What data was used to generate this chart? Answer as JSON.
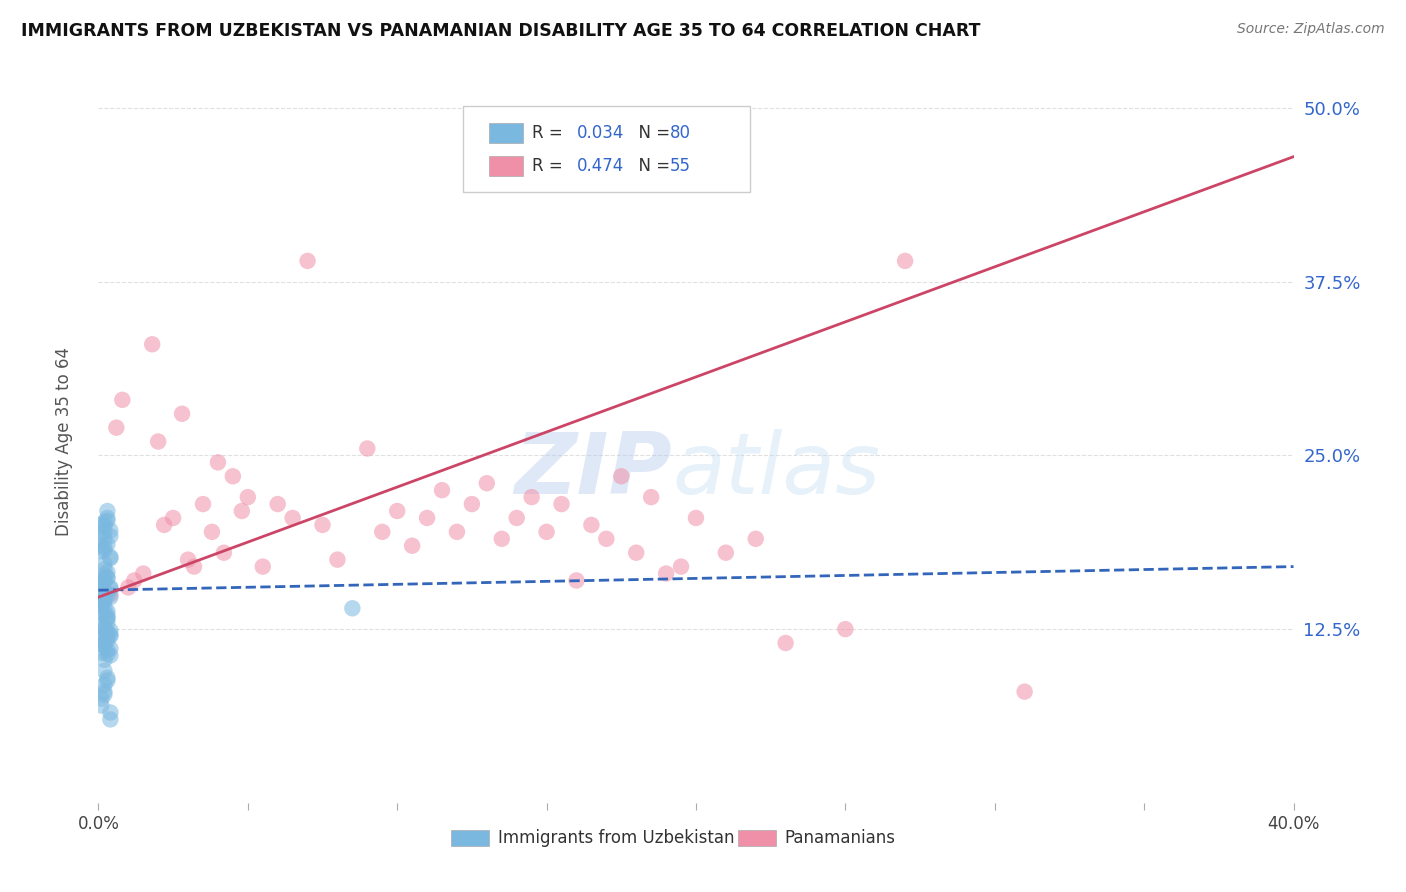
{
  "title": "IMMIGRANTS FROM UZBEKISTAN VS PANAMANIAN DISABILITY AGE 35 TO 64 CORRELATION CHART",
  "source": "Source: ZipAtlas.com",
  "ylabel": "Disability Age 35 to 64",
  "xlim": [
    0.0,
    0.4
  ],
  "ylim": [
    0.0,
    0.52
  ],
  "xticks": [
    0.0,
    0.05,
    0.1,
    0.15,
    0.2,
    0.25,
    0.3,
    0.35,
    0.4
  ],
  "xticklabels": [
    "0.0%",
    "",
    "",
    "",
    "",
    "",
    "",
    "",
    "40.0%"
  ],
  "yticks": [
    0.0,
    0.125,
    0.25,
    0.375,
    0.5
  ],
  "yticklabels": [
    "",
    "12.5%",
    "25.0%",
    "37.5%",
    "50.0%"
  ],
  "grid_color": "#cccccc",
  "background_color": "#ffffff",
  "watermark_zip": "ZIP",
  "watermark_atlas": "atlas",
  "legend_R_blue": "0.034",
  "legend_N_blue": "80",
  "legend_R_pink": "0.474",
  "legend_N_pink": "55",
  "blue_color": "#7ab8e0",
  "pink_color": "#f090a8",
  "blue_line_color": "#3366bb",
  "pink_line_color": "#cc4466",
  "blue_scatter_x": [
    0.002,
    0.001,
    0.003,
    0.002,
    0.004,
    0.001,
    0.003,
    0.002,
    0.001,
    0.003,
    0.002,
    0.004,
    0.001,
    0.003,
    0.002,
    0.001,
    0.004,
    0.002,
    0.003,
    0.001,
    0.002,
    0.003,
    0.001,
    0.004,
    0.002,
    0.003,
    0.001,
    0.002,
    0.004,
    0.003,
    0.002,
    0.001,
    0.003,
    0.002,
    0.004,
    0.001,
    0.003,
    0.002,
    0.001,
    0.004,
    0.002,
    0.003,
    0.001,
    0.002,
    0.004,
    0.003,
    0.002,
    0.001,
    0.003,
    0.002,
    0.004,
    0.001,
    0.003,
    0.002,
    0.001,
    0.004,
    0.002,
    0.003,
    0.001,
    0.002,
    0.004,
    0.003,
    0.002,
    0.001,
    0.003,
    0.002,
    0.004,
    0.001,
    0.003,
    0.002,
    0.001,
    0.004,
    0.002,
    0.003,
    0.001,
    0.002,
    0.004,
    0.003,
    0.002,
    0.085
  ],
  "blue_scatter_y": [
    0.195,
    0.185,
    0.21,
    0.145,
    0.155,
    0.128,
    0.162,
    0.172,
    0.118,
    0.133,
    0.182,
    0.148,
    0.158,
    0.123,
    0.168,
    0.138,
    0.192,
    0.113,
    0.203,
    0.16,
    0.146,
    0.13,
    0.156,
    0.12,
    0.19,
    0.166,
    0.142,
    0.126,
    0.176,
    0.15,
    0.116,
    0.2,
    0.162,
    0.14,
    0.124,
    0.108,
    0.186,
    0.152,
    0.114,
    0.196,
    0.164,
    0.138,
    0.122,
    0.202,
    0.154,
    0.11,
    0.184,
    0.136,
    0.12,
    0.161,
    0.106,
    0.151,
    0.205,
    0.125,
    0.181,
    0.111,
    0.159,
    0.135,
    0.194,
    0.147,
    0.121,
    0.107,
    0.199,
    0.157,
    0.133,
    0.103,
    0.177,
    0.145,
    0.117,
    0.095,
    0.075,
    0.06,
    0.08,
    0.09,
    0.07,
    0.085,
    0.065,
    0.088,
    0.078,
    0.14
  ],
  "pink_scatter_x": [
    0.004,
    0.006,
    0.008,
    0.01,
    0.012,
    0.015,
    0.018,
    0.02,
    0.022,
    0.025,
    0.028,
    0.03,
    0.032,
    0.035,
    0.038,
    0.04,
    0.042,
    0.045,
    0.048,
    0.05,
    0.055,
    0.06,
    0.065,
    0.07,
    0.075,
    0.08,
    0.09,
    0.095,
    0.1,
    0.105,
    0.11,
    0.115,
    0.12,
    0.125,
    0.13,
    0.135,
    0.14,
    0.145,
    0.15,
    0.155,
    0.16,
    0.165,
    0.17,
    0.175,
    0.18,
    0.185,
    0.19,
    0.195,
    0.2,
    0.21,
    0.22,
    0.23,
    0.25,
    0.27,
    0.31
  ],
  "pink_scatter_y": [
    0.15,
    0.27,
    0.29,
    0.155,
    0.16,
    0.165,
    0.33,
    0.26,
    0.2,
    0.205,
    0.28,
    0.175,
    0.17,
    0.215,
    0.195,
    0.245,
    0.18,
    0.235,
    0.21,
    0.22,
    0.17,
    0.215,
    0.205,
    0.39,
    0.2,
    0.175,
    0.255,
    0.195,
    0.21,
    0.185,
    0.205,
    0.225,
    0.195,
    0.215,
    0.23,
    0.19,
    0.205,
    0.22,
    0.195,
    0.215,
    0.16,
    0.2,
    0.19,
    0.235,
    0.18,
    0.22,
    0.165,
    0.17,
    0.205,
    0.18,
    0.19,
    0.115,
    0.125,
    0.39,
    0.08
  ],
  "blue_trend_x": [
    0.0,
    0.4
  ],
  "blue_trend_y": [
    0.153,
    0.17
  ],
  "pink_trend_x": [
    0.0,
    0.4
  ],
  "pink_trend_y": [
    0.148,
    0.465
  ]
}
